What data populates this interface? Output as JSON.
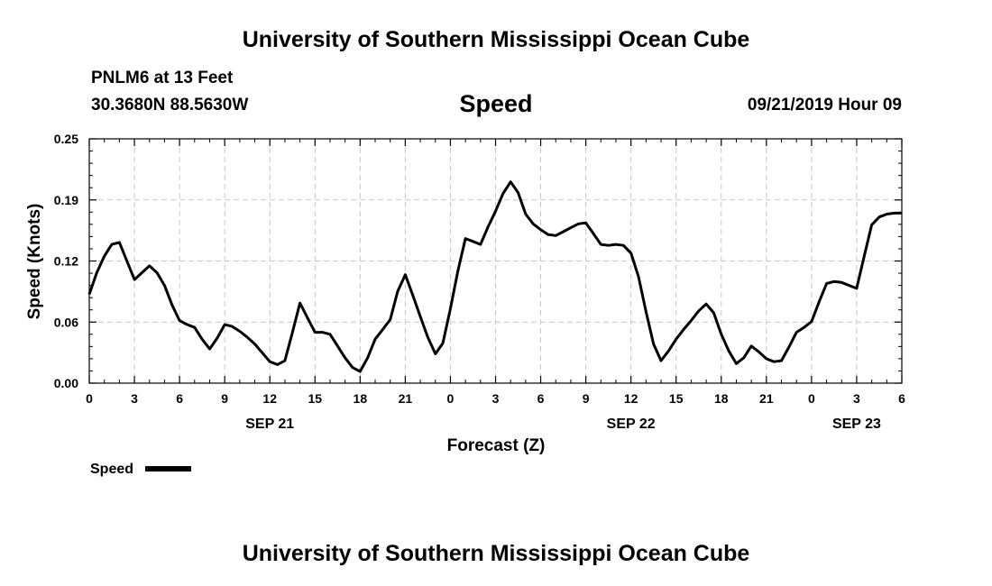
{
  "header": {
    "title": "University of Southern Mississippi Ocean Cube",
    "station": "PNLM6 at 13 Feet",
    "coords": "30.3680N 88.5630W",
    "variable": "Speed",
    "datetime": "09/21/2019 Hour 09"
  },
  "footer": {
    "title": "University of Southern Mississippi Ocean Cube"
  },
  "chart_data": {
    "type": "line",
    "xlabel": "Forecast (Z)",
    "ylabel": "Speed (Knots)",
    "xlim": [
      0,
      54
    ],
    "ylim": [
      0,
      0.25
    ],
    "yticks": [
      "0.00",
      "0.06",
      "0.12",
      "0.19",
      "0.25"
    ],
    "ytick_values": [
      0,
      0.0625,
      0.125,
      0.1875,
      0.25
    ],
    "xticks": [
      {
        "x": 0,
        "label": "0"
      },
      {
        "x": 3,
        "label": "3"
      },
      {
        "x": 6,
        "label": "6"
      },
      {
        "x": 9,
        "label": "9"
      },
      {
        "x": 12,
        "label": "12"
      },
      {
        "x": 15,
        "label": "15"
      },
      {
        "x": 18,
        "label": "18"
      },
      {
        "x": 21,
        "label": "21"
      },
      {
        "x": 24,
        "label": "0"
      },
      {
        "x": 27,
        "label": "3"
      },
      {
        "x": 30,
        "label": "6"
      },
      {
        "x": 33,
        "label": "9"
      },
      {
        "x": 36,
        "label": "12"
      },
      {
        "x": 39,
        "label": "15"
      },
      {
        "x": 42,
        "label": "18"
      },
      {
        "x": 45,
        "label": "21"
      },
      {
        "x": 48,
        "label": "0"
      },
      {
        "x": 51,
        "label": "3"
      },
      {
        "x": 54,
        "label": "6"
      }
    ],
    "date_labels": [
      {
        "x": 12,
        "label": "SEP 21"
      },
      {
        "x": 36,
        "label": "SEP 22"
      },
      {
        "x": 51,
        "label": "SEP 23"
      }
    ],
    "grid": true,
    "legend": {
      "placement": "bottom-left",
      "label": "Speed"
    },
    "series": [
      {
        "name": "Speed",
        "color": "#000000",
        "x": [
          0,
          0.5,
          1,
          1.5,
          2,
          2.5,
          3,
          3.5,
          4,
          4.5,
          5,
          5.5,
          6,
          6.5,
          7,
          7.5,
          8,
          8.5,
          9,
          9.5,
          10,
          10.5,
          11,
          11.5,
          12,
          12.5,
          13,
          13.5,
          14,
          14.5,
          15,
          15.5,
          16,
          16.5,
          17,
          17.5,
          18,
          18.5,
          19,
          19.5,
          20,
          20.5,
          21,
          21.5,
          22,
          22.5,
          23,
          23.5,
          24,
          24.5,
          25,
          25.5,
          26,
          26.5,
          27,
          27.5,
          28,
          28.5,
          29,
          29.5,
          30,
          30.5,
          31,
          31.5,
          32,
          32.5,
          33,
          33.5,
          34,
          34.5,
          35,
          35.5,
          36,
          36.5,
          37,
          37.5,
          38,
          38.5,
          39,
          39.5,
          40,
          40.5,
          41,
          41.5,
          42,
          42.5,
          43,
          43.5,
          44,
          44.5,
          45,
          45.5,
          46,
          46.5,
          47,
          47.5,
          48,
          48.5,
          49,
          49.5,
          50,
          50.5,
          51,
          51.5,
          52,
          52.5,
          53,
          53.5,
          54
        ],
        "values": [
          0.091,
          0.113,
          0.13,
          0.142,
          0.144,
          0.125,
          0.106,
          0.113,
          0.12,
          0.113,
          0.1,
          0.08,
          0.064,
          0.06,
          0.057,
          0.045,
          0.035,
          0.046,
          0.06,
          0.058,
          0.053,
          0.047,
          0.04,
          0.031,
          0.022,
          0.019,
          0.023,
          0.052,
          0.082,
          0.067,
          0.052,
          0.052,
          0.05,
          0.038,
          0.026,
          0.016,
          0.012,
          0.026,
          0.045,
          0.055,
          0.065,
          0.094,
          0.111,
          0.09,
          0.068,
          0.047,
          0.03,
          0.041,
          0.076,
          0.115,
          0.148,
          0.145,
          0.142,
          0.16,
          0.176,
          0.194,
          0.206,
          0.195,
          0.173,
          0.163,
          0.157,
          0.152,
          0.151,
          0.155,
          0.159,
          0.163,
          0.164,
          0.153,
          0.142,
          0.141,
          0.142,
          0.141,
          0.133,
          0.109,
          0.073,
          0.04,
          0.023,
          0.033,
          0.045,
          0.055,
          0.064,
          0.074,
          0.081,
          0.072,
          0.05,
          0.033,
          0.02,
          0.026,
          0.038,
          0.032,
          0.025,
          0.022,
          0.023,
          0.037,
          0.052,
          0.057,
          0.063,
          0.083,
          0.102,
          0.104,
          0.103,
          0.1,
          0.097,
          0.13,
          0.162,
          0.17,
          0.173,
          0.174,
          0.174
        ]
      }
    ]
  }
}
